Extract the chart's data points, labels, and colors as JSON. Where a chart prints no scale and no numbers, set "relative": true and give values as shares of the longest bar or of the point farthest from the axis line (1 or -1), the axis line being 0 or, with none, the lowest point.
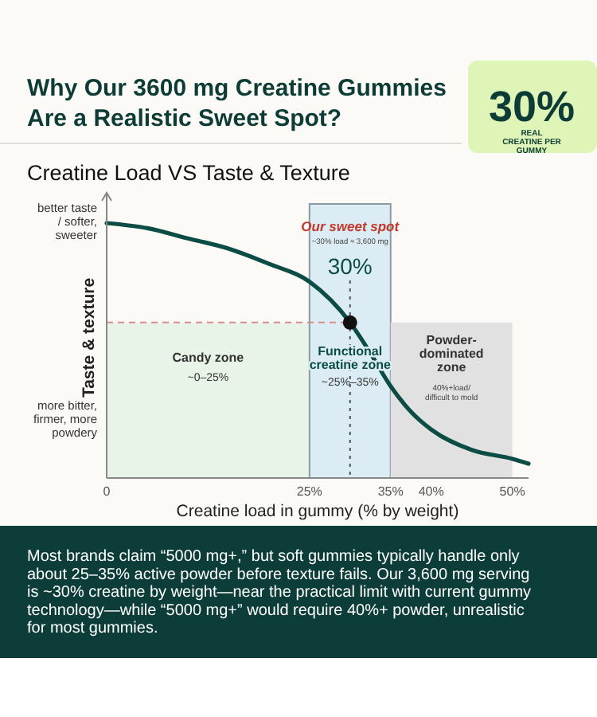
{
  "chart_data": {
    "type": "line",
    "title": "Why Our 3600 mg Creatine Gummies Are a Realistic Sweet Spot?",
    "subtitle": "Creatine Load VS Taste & Texture",
    "xlabel": "Creatine load in gummy (% by weight)",
    "ylabel": "Taste & texture",
    "relative": true,
    "xlim": [
      0,
      52
    ],
    "xticks": [
      {
        "value": 0,
        "label": "0"
      },
      {
        "value": 25,
        "label": "25%"
      },
      {
        "value": 35,
        "label": "35%"
      },
      {
        "value": 40,
        "label": "40%"
      },
      {
        "value": 50,
        "label": "50%"
      }
    ],
    "series": [
      {
        "color": "#0b4d45",
        "x": [
          0,
          5,
          10,
          15,
          20,
          25,
          30,
          32.5,
          35,
          37.5,
          40,
          45,
          50,
          52
        ],
        "values": [
          1,
          0.98,
          0.94,
          0.9,
          0.84,
          0.77,
          0.61,
          0.49,
          0.36,
          0.26,
          0.19,
          0.11,
          0.075,
          0.056
        ]
      },
      {
        "type": "scatter",
        "color": "#111111",
        "x": [
          30
        ],
        "values": [
          0.61
        ]
      }
    ],
    "bands": [
      {
        "axis": "x",
        "from": 0,
        "to": 25,
        "label": "Candy zone",
        "color": "#e9f4e8"
      },
      {
        "axis": "x",
        "from": 25,
        "to": 35,
        "label": "Functional creatine zone",
        "color": "#dcecf4"
      },
      {
        "axis": "x",
        "from": 35,
        "to": 50,
        "label": "Powder-dominated zone",
        "color": "#e1e1e1"
      }
    ],
    "ref_lines": [
      {
        "axis": "x",
        "value": 30,
        "label": "30%",
        "color": "#555555",
        "line_style": "dotted"
      },
      {
        "axis": "y",
        "value": 0.61,
        "label": null,
        "color": "#d98c8c",
        "line_style": "dashed"
      }
    ],
    "annotations": [
      "better taste / softer, sweeter",
      "more bitter, firmer, more powdery",
      "~0–25%",
      "~25%–35%",
      "40%+load/ difficult to mold",
      "Our sweet spot",
      "~30% load ≈ 3,600 mg",
      "30%",
      "REAL CREATINE PER GUMMY",
      "Most brands claim “5000 mg+,” but soft gummies typically handle only about 25–35% active powder before texture fails. Our 3,600 mg serving is ~30% creatine by weight—near the practical limit with current gummy technology—while “5000 mg+” would require 40%+ powder, unrealistic for most gummies."
    ]
  }
}
